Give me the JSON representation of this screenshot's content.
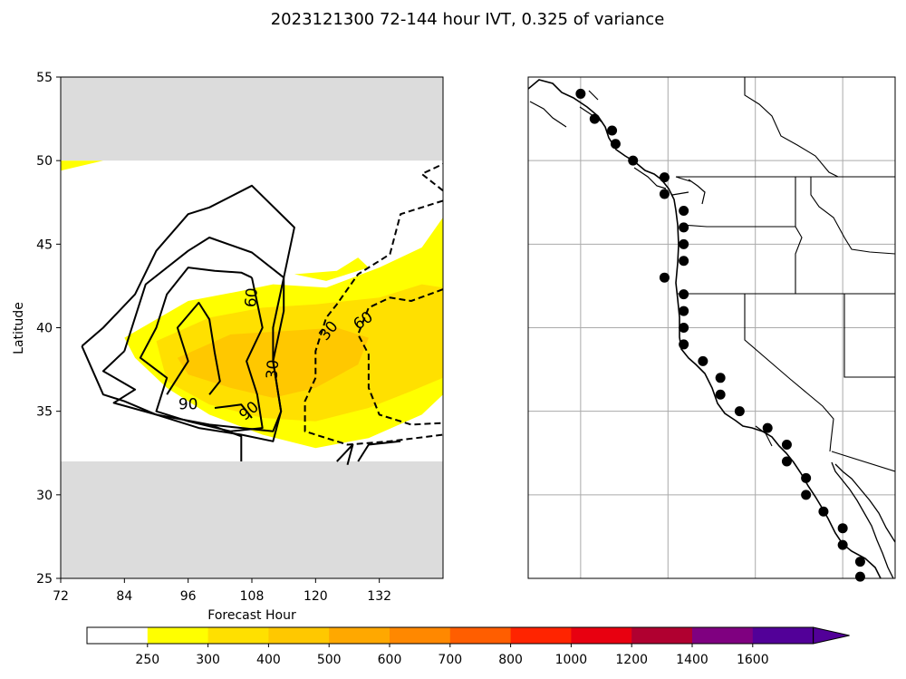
{
  "figure": {
    "title": "2023121300 72-144 hour IVT, 0.325 of variance"
  },
  "chart_data": [
    {
      "type": "contour",
      "xlabel": "Forecast Hour",
      "ylabel": "Latitude",
      "xlim": [
        72,
        144
      ],
      "ylim": [
        25,
        55
      ],
      "xticks": [
        72,
        84,
        96,
        108,
        120,
        132
      ],
      "yticks": [
        25,
        30,
        35,
        40,
        45,
        50,
        55
      ],
      "data_band_lat": [
        32,
        50
      ],
      "masked_color": "#dcdcdc",
      "filled_levels": [
        {
          "value": 250,
          "color": "#ffff00",
          "rings": [
            [
              [
                72,
                50
              ],
              [
                72,
                49.4
              ],
              [
                80,
                50
              ],
              [
                72,
                50
              ]
            ],
            [
              [
                84,
                39.4
              ],
              [
                96,
                41.6
              ],
              [
                106,
                42.2
              ],
              [
                112,
                42.6
              ],
              [
                122,
                42.4
              ],
              [
                132,
                43.6
              ],
              [
                140,
                44.8
              ],
              [
                144,
                46.6
              ],
              [
                144,
                36
              ],
              [
                140,
                34.8
              ],
              [
                130,
                33.4
              ],
              [
                120,
                32.8
              ],
              [
                110,
                33.6
              ],
              [
                100,
                34.8
              ],
              [
                92,
                36.4
              ],
              [
                86,
                38.2
              ],
              [
                84,
                39.4
              ]
            ],
            [
              [
                116,
                43.2
              ],
              [
                124,
                43.4
              ],
              [
                128,
                44.2
              ],
              [
                130,
                43.6
              ],
              [
                122,
                42.8
              ],
              [
                116,
                43.2
              ]
            ]
          ]
        },
        {
          "value": 300,
          "color": "#ffe000",
          "rings": [
            [
              [
                90,
                39.2
              ],
              [
                100,
                40.6
              ],
              [
                110,
                41.2
              ],
              [
                120,
                41.4
              ],
              [
                132,
                41.8
              ],
              [
                140,
                42.6
              ],
              [
                144,
                42.4
              ],
              [
                144,
                37
              ],
              [
                138,
                36.2
              ],
              [
                130,
                35.2
              ],
              [
                120,
                34.4
              ],
              [
                110,
                34.6
              ],
              [
                100,
                35.4
              ],
              [
                92,
                36.8
              ],
              [
                90,
                39.2
              ]
            ]
          ]
        },
        {
          "value": 400,
          "color": "#ffc800",
          "rings": [
            [
              [
                94,
                38.2
              ],
              [
                104,
                39.6
              ],
              [
                114,
                39.8
              ],
              [
                124,
                40
              ],
              [
                130,
                39.4
              ],
              [
                128,
                37.8
              ],
              [
                120,
                36.4
              ],
              [
                112,
                35.8
              ],
              [
                104,
                36.4
              ],
              [
                96,
                37.2
              ],
              [
                94,
                38.2
              ]
            ]
          ]
        }
      ],
      "contour_lines": [
        {
          "level": 90,
          "style": "solid",
          "points": [
            [
              92,
              36
            ],
            [
              96,
              38
            ],
            [
              94,
              40
            ],
            [
              98,
              41.5
            ],
            [
              100,
              40.5
            ],
            [
              101,
              38.5
            ],
            [
              102,
              36.8
            ],
            [
              100,
              36
            ]
          ]
        },
        {
          "level": 90,
          "style": "solid",
          "points": [
            [
              101,
              35.2
            ],
            [
              106,
              35.4
            ],
            [
              108,
              34.6
            ]
          ]
        },
        {
          "level": 60,
          "style": "solid",
          "points": [
            [
              108,
              43
            ],
            [
              106,
              43.3
            ],
            [
              101,
              43.4
            ],
            [
              96,
              43.6
            ],
            [
              92,
              42
            ],
            [
              90,
              40
            ],
            [
              87,
              38.2
            ],
            [
              92,
              37
            ],
            [
              90,
              35
            ],
            [
              96,
              34.4
            ],
            [
              104,
              33.8
            ],
            [
              110,
              34
            ],
            [
              109,
              36
            ],
            [
              107,
              38
            ],
            [
              110,
              40
            ],
            [
              108,
              43
            ]
          ]
        },
        {
          "level": 30,
          "style": "solid",
          "points": [
            [
              84,
              38.6
            ],
            [
              80,
              37.4
            ],
            [
              86,
              36.3
            ],
            [
              82,
              35.5
            ],
            [
              90,
              34.8
            ],
            [
              98,
              34
            ],
            [
              106,
              33.6
            ],
            [
              112,
              33.2
            ],
            [
              113.5,
              35
            ],
            [
              112,
              38
            ],
            [
              114,
              41
            ],
            [
              114,
              43
            ],
            [
              108,
              44.5
            ],
            [
              100,
              45.4
            ],
            [
              96,
              44.6
            ],
            [
              88,
              42.6
            ],
            [
              84,
              38.6
            ]
          ]
        },
        {
          "level": 30,
          "style": "solid",
          "points": [
            [
              76,
              38.9
            ],
            [
              80,
              40
            ],
            [
              86,
              42
            ],
            [
              90,
              44.6
            ],
            [
              96,
              46.8
            ],
            [
              100,
              47.2
            ],
            [
              108,
              48.5
            ],
            [
              116,
              46
            ],
            [
              114,
              43
            ],
            [
              112,
              40
            ],
            [
              112,
              38
            ],
            [
              113.5,
              35
            ],
            [
              112,
              33.8
            ],
            [
              100,
              34.2
            ],
            [
              90,
              34.8
            ],
            [
              84,
              35.6
            ],
            [
              80,
              36
            ],
            [
              76,
              38.9
            ]
          ]
        },
        {
          "level": 30,
          "style": "solid",
          "points": [
            [
              106,
              32
            ],
            [
              106,
              33.5
            ],
            [
              100,
              34.2
            ]
          ]
        },
        {
          "level": 30,
          "style": "solid",
          "points": [
            [
              124,
              32
            ],
            [
              127,
              33
            ],
            [
              126,
              31.8
            ]
          ]
        },
        {
          "level": 30,
          "style": "solid",
          "points": [
            [
              128,
              32
            ],
            [
              130,
              33
            ],
            [
              136,
              33.2
            ]
          ]
        },
        {
          "level": 60,
          "style": "dashed",
          "points": [
            [
              144,
              42.3
            ],
            [
              138,
              41.6
            ],
            [
              134,
              41.8
            ],
            [
              130,
              41.2
            ],
            [
              128,
              39.6
            ],
            [
              130,
              38.4
            ],
            [
              130,
              36.4
            ],
            [
              132,
              34.8
            ],
            [
              138,
              34.2
            ],
            [
              144,
              34.3
            ]
          ]
        },
        {
          "level": 30,
          "style": "dashed",
          "points": [
            [
              144,
              47.6
            ],
            [
              136,
              46.8
            ],
            [
              134,
              44.4
            ],
            [
              128,
              43.2
            ],
            [
              124,
              41.4
            ],
            [
              122,
              40.6
            ],
            [
              120,
              38.6
            ],
            [
              120,
              37
            ],
            [
              118,
              35.6
            ],
            [
              118,
              33.8
            ],
            [
              126,
              33
            ],
            [
              134,
              33.2
            ],
            [
              144,
              33.6
            ]
          ]
        },
        {
          "level": 60,
          "style": "dashed",
          "points": [
            [
              144,
              48.2
            ],
            [
              140,
              49.2
            ],
            [
              144,
              49.8
            ]
          ]
        }
      ],
      "contour_labels": [
        {
          "text": "60",
          "at": [
            108,
            41.8
          ],
          "rotate": -85
        },
        {
          "text": "90",
          "at": [
            96,
            35.4
          ],
          "rotate": 0
        },
        {
          "text": "90",
          "at": [
            107.5,
            35
          ],
          "rotate": -40
        },
        {
          "text": "30",
          "at": [
            112,
            37.5
          ],
          "rotate": -85
        },
        {
          "text": "30",
          "at": [
            122.5,
            39.8
          ],
          "rotate": -50
        },
        {
          "text": "60",
          "at": [
            129,
            40.4
          ],
          "rotate": -35
        }
      ]
    },
    {
      "type": "map",
      "lon_range": [
        -131,
        -110
      ],
      "lat_range": [
        25,
        55
      ],
      "grid": true,
      "graticule_lon": [
        -128,
        -123,
        -118,
        -113
      ],
      "graticule_lat": [
        25,
        30,
        35,
        40,
        45,
        50
      ],
      "points": [
        [
          -128,
          54
        ],
        [
          -127.2,
          52.5
        ],
        [
          -126.2,
          51.8
        ],
        [
          -126,
          51
        ],
        [
          -125,
          50
        ],
        [
          -123.2,
          49
        ],
        [
          -123.2,
          48
        ],
        [
          -122.1,
          47
        ],
        [
          -122.1,
          46
        ],
        [
          -122.1,
          45
        ],
        [
          -122.1,
          44
        ],
        [
          -123.2,
          43
        ],
        [
          -122.1,
          42
        ],
        [
          -122.1,
          41
        ],
        [
          -122.1,
          40
        ],
        [
          -122.1,
          39
        ],
        [
          -121,
          38
        ],
        [
          -120,
          37
        ],
        [
          -120,
          36
        ],
        [
          -118.9,
          35
        ],
        [
          -117.3,
          34
        ],
        [
          -116.2,
          33
        ],
        [
          -116.2,
          32
        ],
        [
          -115.1,
          31
        ],
        [
          -115.1,
          30
        ],
        [
          -114.1,
          29
        ],
        [
          -113,
          28
        ],
        [
          -113,
          27
        ],
        [
          -112,
          26
        ],
        [
          -112,
          25.1
        ]
      ]
    }
  ],
  "colorbar": {
    "labels": [
      "250",
      "300",
      "400",
      "500",
      "600",
      "700",
      "800",
      "1000",
      "1200",
      "1400",
      "1600"
    ],
    "colors": [
      "#ffffff",
      "#ffff00",
      "#ffe000",
      "#ffc800",
      "#ffa800",
      "#ff8800",
      "#ff5e00",
      "#ff2400",
      "#e80010",
      "#b00030",
      "#7f0080",
      "#520098"
    ],
    "extend_color": "#520098"
  }
}
